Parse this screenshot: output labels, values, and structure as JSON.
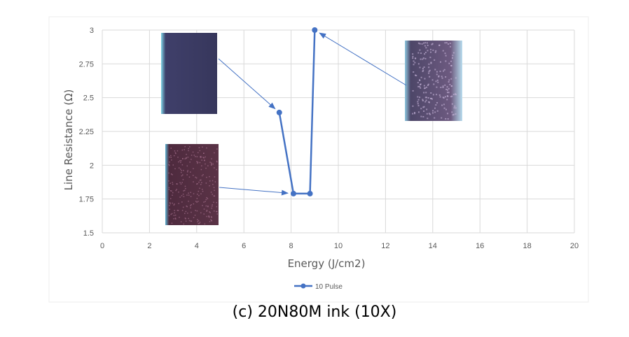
{
  "chart_data": {
    "type": "line",
    "title": "",
    "xlabel": "Energy (J/cm2)",
    "ylabel": "Line Resistance (Ω)",
    "xlim": [
      0,
      20
    ],
    "ylim": [
      1.5,
      3
    ],
    "xticks": [
      "0",
      "2",
      "4",
      "6",
      "8",
      "10",
      "12",
      "14",
      "16",
      "18",
      "20"
    ],
    "yticks": [
      "1.5",
      "1.75",
      "2",
      "2.25",
      "2.5",
      "2.75",
      "3"
    ],
    "grid": true,
    "legend_position": "bottom",
    "series": [
      {
        "name": "10 Pulse",
        "color": "#4472c4",
        "x": [
          7.5,
          8.1,
          8.8,
          9.0
        ],
        "y": [
          2.39,
          1.79,
          1.79,
          3.0
        ]
      }
    ],
    "annotations": [
      {
        "type": "micrograph-inset",
        "points_to": [
          7.5,
          2.39
        ]
      },
      {
        "type": "micrograph-inset",
        "points_to": [
          8.1,
          1.79
        ]
      },
      {
        "type": "micrograph-inset",
        "points_to": [
          9.0,
          3.0
        ]
      }
    ]
  },
  "caption": "(c) 20N80M ink (10X)"
}
